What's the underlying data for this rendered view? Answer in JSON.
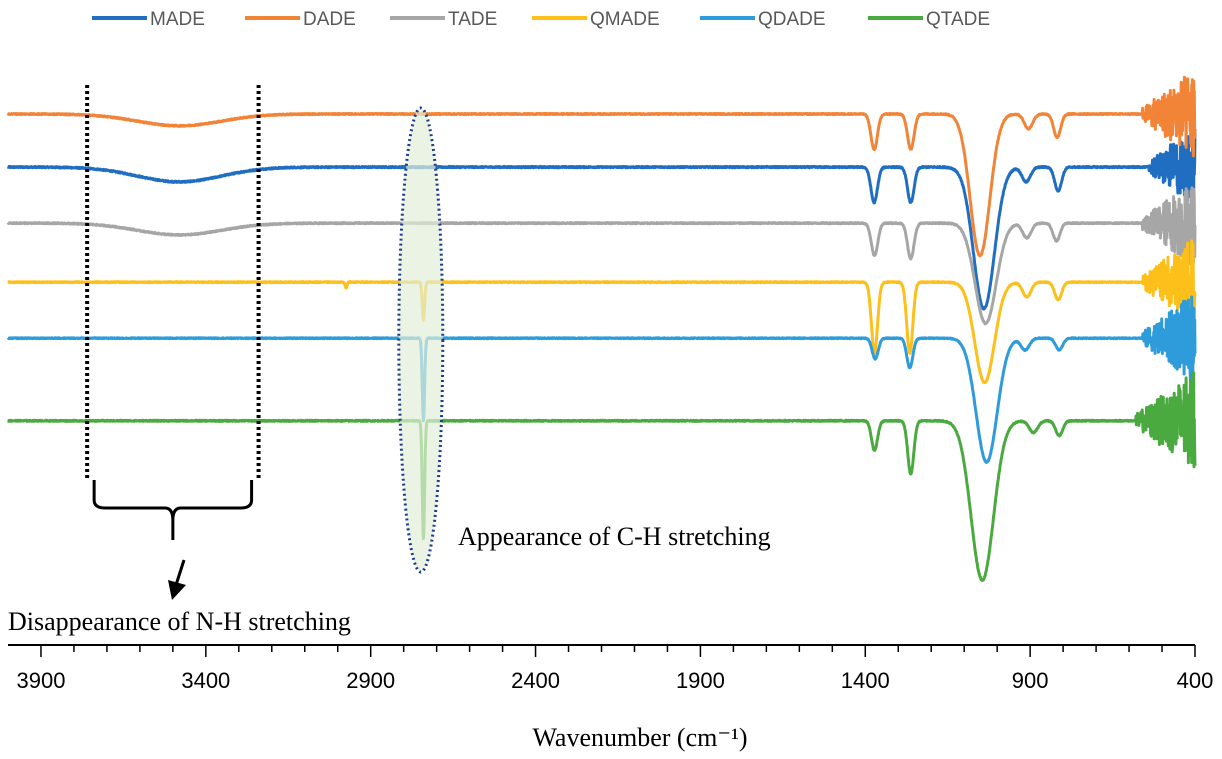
{
  "chart_data": {
    "type": "line",
    "title": "",
    "xlabel": "Wavenumber (cm⁻¹)",
    "ylabel": "",
    "xlim": [
      4000,
      400
    ],
    "x_reversed": true,
    "x_ticks": [
      3900,
      3400,
      2900,
      2400,
      1900,
      1400,
      900,
      400
    ],
    "x_tick_labels": [
      "3900",
      "3400",
      "2900",
      "2400",
      "1900",
      "1400",
      "900",
      "400"
    ],
    "y_units": "transmittance (arbitrary, curves offset vertically)",
    "ylim": [
      0,
      100
    ],
    "grid": false,
    "legend": {
      "placement": "top",
      "entries": [
        "MADE",
        "DADE",
        "TADE",
        "QMADE",
        "QDADE",
        "QTADE"
      ]
    },
    "series": [
      {
        "name": "MADE",
        "color": "#1F6EC1",
        "baseline": 81,
        "noise": 0.35,
        "noisy_from": 540,
        "features": [
          {
            "center": 3480,
            "width": 180,
            "depth": 2.5
          },
          {
            "center": 1373,
            "width": 14,
            "depth": 6
          },
          {
            "center": 1262,
            "width": 14,
            "depth": 6
          },
          {
            "center": 1040,
            "width": 45,
            "depth": 24
          },
          {
            "center": 912,
            "width": 18,
            "depth": 2.5
          },
          {
            "center": 815,
            "width": 15,
            "depth": 4
          }
        ]
      },
      {
        "name": "DADE",
        "color": "#F28438",
        "baseline": 90,
        "noise": 0.3,
        "noisy_from": 560,
        "features": [
          {
            "center": 3480,
            "width": 180,
            "depth": 2
          },
          {
            "center": 1373,
            "width": 14,
            "depth": 6
          },
          {
            "center": 1262,
            "width": 14,
            "depth": 6
          },
          {
            "center": 1052,
            "width": 42,
            "depth": 24
          },
          {
            "center": 905,
            "width": 18,
            "depth": 2.5
          },
          {
            "center": 818,
            "width": 15,
            "depth": 4
          }
        ]
      },
      {
        "name": "TADE",
        "color": "#A6A6A6",
        "baseline": 71.5,
        "noise": 0.3,
        "noisy_from": 560,
        "features": [
          {
            "center": 3480,
            "width": 180,
            "depth": 2
          },
          {
            "center": 1372,
            "width": 14,
            "depth": 5.5
          },
          {
            "center": 1262,
            "width": 14,
            "depth": 6
          },
          {
            "center": 1035,
            "width": 45,
            "depth": 17
          },
          {
            "center": 910,
            "width": 18,
            "depth": 2.5
          },
          {
            "center": 820,
            "width": 15,
            "depth": 3
          }
        ]
      },
      {
        "name": "QMADE",
        "color": "#FDBF1A",
        "baseline": 61.5,
        "noise": 0.25,
        "noisy_from": 560,
        "features": [
          {
            "center": 2740,
            "width": 5,
            "depth": 6.5
          },
          {
            "center": 2975,
            "width": 4,
            "depth": 1
          },
          {
            "center": 1372,
            "width": 13,
            "depth": 12
          },
          {
            "center": 1265,
            "width": 13,
            "depth": 12
          },
          {
            "center": 1038,
            "width": 42,
            "depth": 17
          },
          {
            "center": 910,
            "width": 18,
            "depth": 2.5
          },
          {
            "center": 815,
            "width": 15,
            "depth": 3
          }
        ]
      },
      {
        "name": "QDADE",
        "color": "#2E9BDB",
        "baseline": 52,
        "noise": 0.25,
        "noisy_from": 560,
        "features": [
          {
            "center": 2740,
            "width": 5,
            "depth": 14
          },
          {
            "center": 1370,
            "width": 13,
            "depth": 3.5
          },
          {
            "center": 1265,
            "width": 13,
            "depth": 5
          },
          {
            "center": 1032,
            "width": 45,
            "depth": 21
          },
          {
            "center": 915,
            "width": 18,
            "depth": 2
          },
          {
            "center": 812,
            "width": 15,
            "depth": 2
          }
        ]
      },
      {
        "name": "QTADE",
        "color": "#4AAA3F",
        "baseline": 38,
        "noise": 0.3,
        "noisy_from": 580,
        "features": [
          {
            "center": 2740,
            "width": 5,
            "depth": 20
          },
          {
            "center": 1372,
            "width": 13,
            "depth": 5
          },
          {
            "center": 1262,
            "width": 13,
            "depth": 9
          },
          {
            "center": 1045,
            "width": 48,
            "depth": 27
          },
          {
            "center": 890,
            "width": 18,
            "depth": 2
          },
          {
            "center": 812,
            "width": 15,
            "depth": 2.5
          }
        ]
      }
    ],
    "annotations": [
      {
        "id": "nh",
        "text": "Disappearance of N-H stretching",
        "region": [
          3760,
          3240
        ]
      },
      {
        "id": "ch",
        "text": "Appearance of C-H stretching",
        "center": 2745
      }
    ]
  }
}
